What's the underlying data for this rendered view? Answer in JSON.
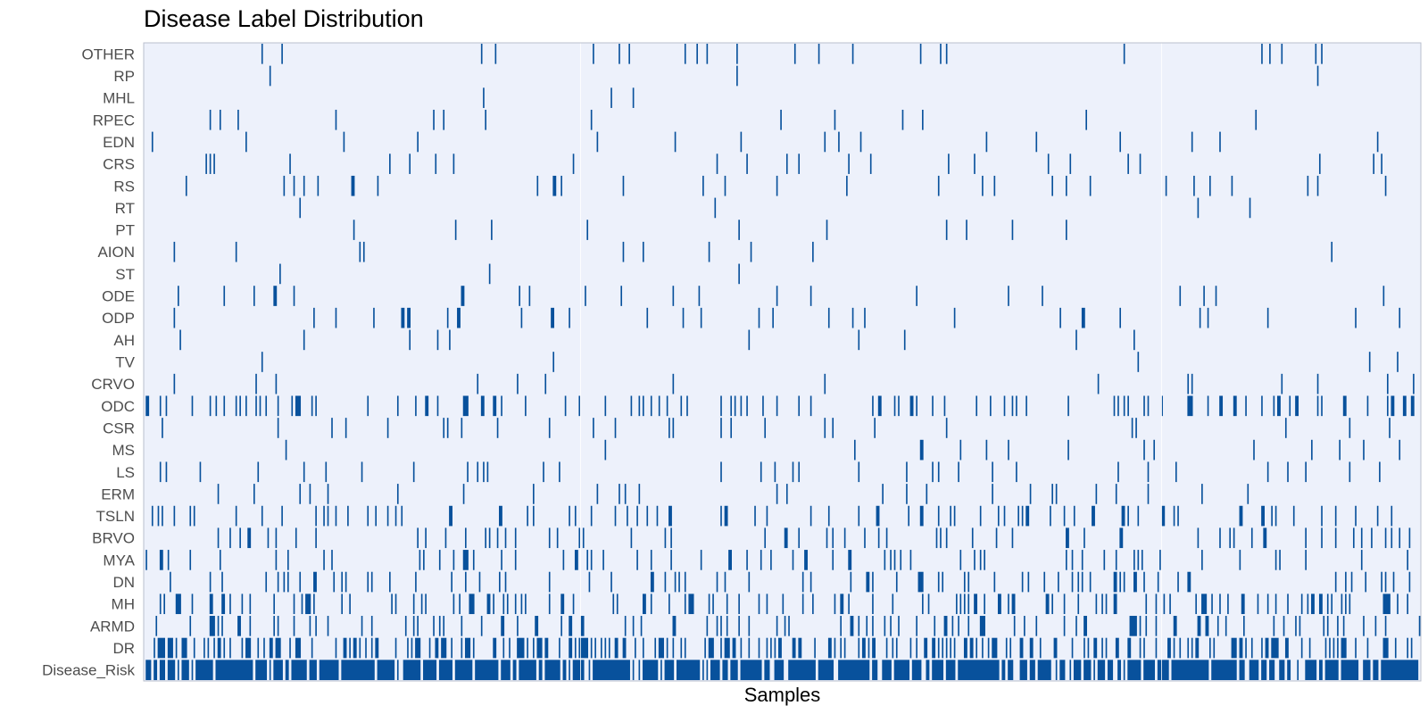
{
  "chart_data": {
    "type": "heatmap",
    "title": "Disease Label Distribution",
    "xlabel": "Samples",
    "ylabel": "",
    "n_samples": 640,
    "colors": {
      "background": "#edf1fb",
      "positive": "#08519c",
      "grid": "#ffffff",
      "border": "#b9bfcc"
    },
    "rows": [
      {
        "label": "OTHER",
        "density": 0.03
      },
      {
        "label": "RP",
        "density": 0.006
      },
      {
        "label": "MHL",
        "density": 0.01
      },
      {
        "label": "RPEC",
        "density": 0.02
      },
      {
        "label": "EDN",
        "density": 0.02
      },
      {
        "label": "CRS",
        "density": 0.03
      },
      {
        "label": "RS",
        "density": 0.04
      },
      {
        "label": "RT",
        "density": 0.01
      },
      {
        "label": "PT",
        "density": 0.01
      },
      {
        "label": "AION",
        "density": 0.02
      },
      {
        "label": "ST",
        "density": 0.006
      },
      {
        "label": "ODE",
        "density": 0.05
      },
      {
        "label": "ODP",
        "density": 0.05
      },
      {
        "label": "AH",
        "density": 0.015
      },
      {
        "label": "TV",
        "density": 0.008
      },
      {
        "label": "CRVO",
        "density": 0.03
      },
      {
        "label": "ODC",
        "density": 0.17
      },
      {
        "label": "CSR",
        "density": 0.04
      },
      {
        "label": "MS",
        "density": 0.02
      },
      {
        "label": "LS",
        "density": 0.05
      },
      {
        "label": "ERM",
        "density": 0.03
      },
      {
        "label": "TSLN",
        "density": 0.14
      },
      {
        "label": "BRVO",
        "density": 0.09
      },
      {
        "label": "MYA",
        "density": 0.1
      },
      {
        "label": "DN",
        "density": 0.11
      },
      {
        "label": "MH",
        "density": 0.22
      },
      {
        "label": "ARMD",
        "density": 0.14
      },
      {
        "label": "DR",
        "density": 0.35
      },
      {
        "label": "Disease_Risk",
        "density": 0.8
      }
    ]
  }
}
